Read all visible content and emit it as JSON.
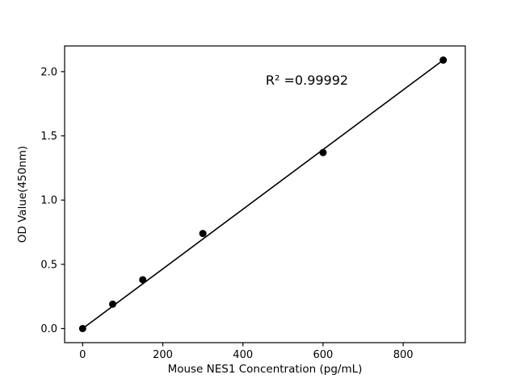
{
  "chart_data": {
    "type": "scatter",
    "title": "",
    "xlabel": "Mouse NES1 Concentration (pg/mL)",
    "ylabel": "OD Value(450nm)",
    "annotation": "R² =0.99992",
    "x": [
      0,
      75,
      150,
      300,
      600,
      900
    ],
    "y": [
      0.0,
      0.19,
      0.38,
      0.74,
      1.37,
      2.09
    ],
    "fit_line": {
      "x": [
        0,
        900
      ],
      "y": [
        0.0,
        2.09
      ]
    },
    "xlim": [
      -45,
      955
    ],
    "ylim": [
      -0.11,
      2.2
    ],
    "xticks": [
      0,
      200,
      400,
      600,
      800
    ],
    "xtick_labels": [
      "0",
      "200",
      "400",
      "600",
      "800"
    ],
    "yticks": [
      0.0,
      0.5,
      1.0,
      1.5,
      2.0
    ],
    "ytick_labels": [
      "0.0",
      "0.5",
      "1.0",
      "1.5",
      "2.0"
    ],
    "legend": null,
    "grid": false,
    "marker_color": "#000000",
    "line_color": "#000000",
    "background": "#ffffff"
  }
}
